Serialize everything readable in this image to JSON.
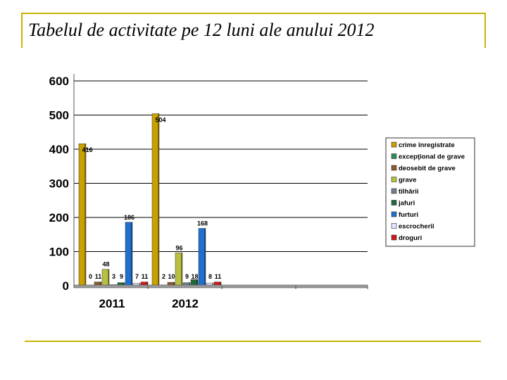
{
  "slide": {
    "title": "Tabelul de activitate pe 12 luni ale anului 2012"
  },
  "chart_data": {
    "type": "bar",
    "title": "",
    "xlabel": "",
    "ylabel": "",
    "ylim": [
      0,
      600
    ],
    "yticks": [
      0,
      100,
      200,
      300,
      400,
      500,
      600
    ],
    "grid": true,
    "legend_position": "right",
    "categories": [
      "2011",
      "2012"
    ],
    "series": [
      {
        "name": "crime înregistrate",
        "color": "#c8a000",
        "values": [
          416,
          504
        ]
      },
      {
        "name": "excepţional de grave",
        "color": "#2e8b57",
        "values": [
          0,
          2
        ]
      },
      {
        "name": "deosebit de grave",
        "color": "#8b5a2b",
        "values": [
          11,
          10
        ]
      },
      {
        "name": "grave",
        "color": "#b8c040",
        "values": [
          48,
          96
        ]
      },
      {
        "name": "tîlhării",
        "color": "#708090",
        "values": [
          3,
          9
        ]
      },
      {
        "name": "jafuri",
        "color": "#1e6b3a",
        "values": [
          9,
          18
        ]
      },
      {
        "name": "furturi",
        "color": "#1f6fd0",
        "values": [
          186,
          168
        ]
      },
      {
        "name": "escrocherii",
        "color": "#e0e6ff",
        "values": [
          7,
          8
        ]
      },
      {
        "name": "droguri",
        "color": "#d01818",
        "values": [
          11,
          11
        ]
      }
    ]
  }
}
